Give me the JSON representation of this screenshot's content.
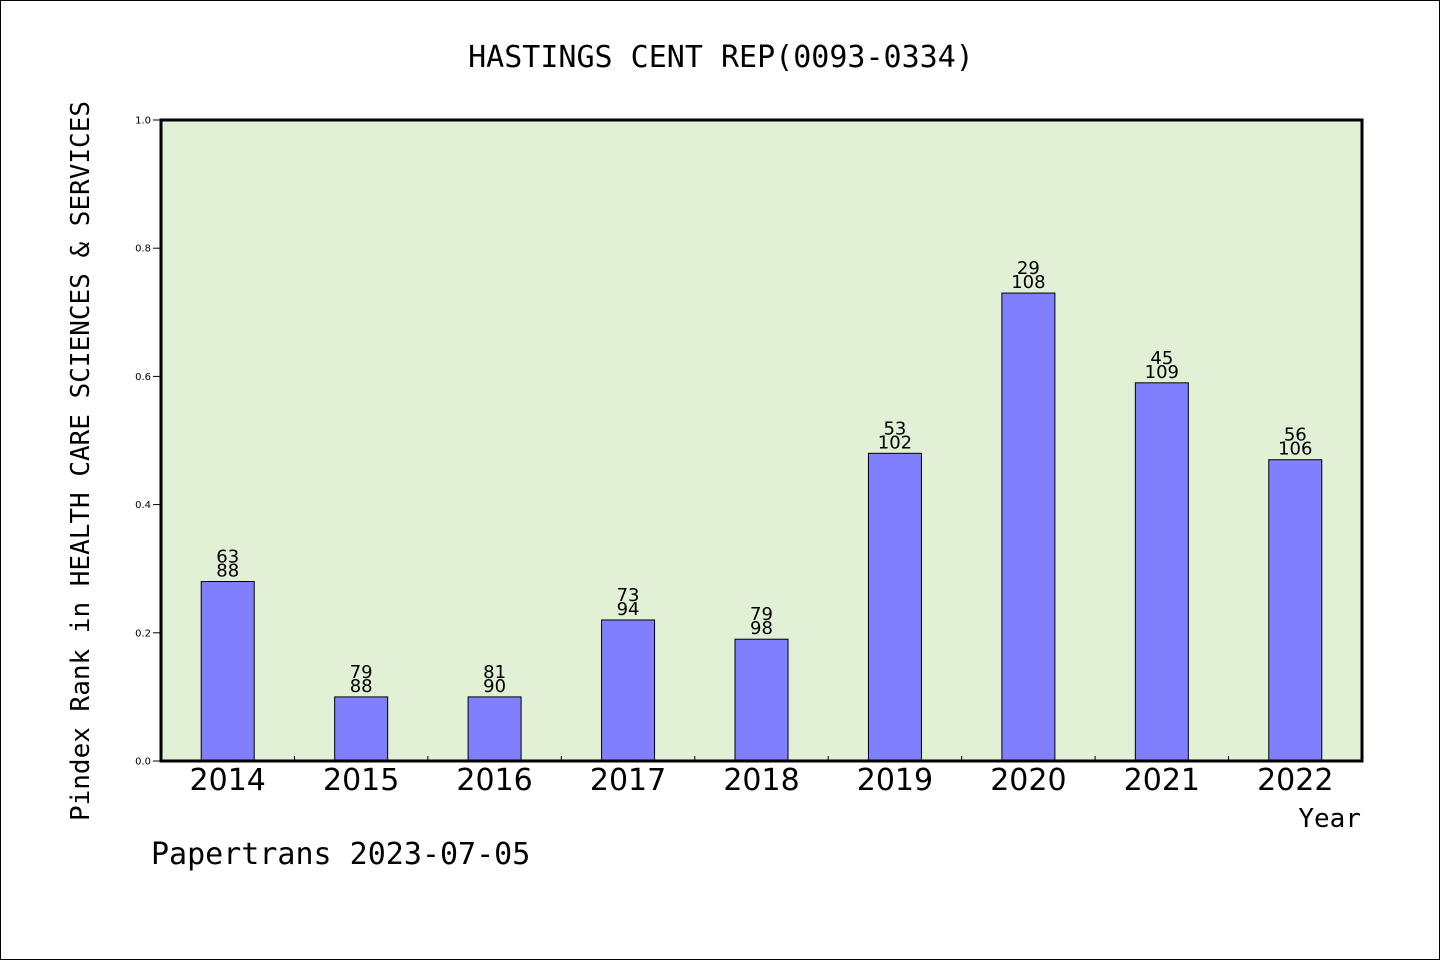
{
  "chart_data": {
    "type": "bar",
    "title": "HASTINGS CENT REP(0093-0334)",
    "xlabel": "Year",
    "ylabel": "Pindex Rank in HEALTH CARE SCIENCES & SERVICES",
    "ylim": [
      0,
      1.0
    ],
    "yticks": [
      "0.0",
      "0.2",
      "0.4",
      "0.6",
      "0.8",
      "1.0"
    ],
    "categories": [
      "2014",
      "2015",
      "2016",
      "2017",
      "2018",
      "2019",
      "2020",
      "2021",
      "2022"
    ],
    "values": [
      0.28,
      0.1,
      0.1,
      0.22,
      0.19,
      0.48,
      0.73,
      0.59,
      0.47
    ],
    "rank_labels": [
      "63",
      "79",
      "81",
      "73",
      "79",
      "53",
      "29",
      "45",
      "56"
    ],
    "total_labels": [
      "88",
      "88",
      "90",
      "94",
      "98",
      "102",
      "108",
      "109",
      "106"
    ],
    "grid": false,
    "legend": "none",
    "colors": {
      "plot_background": "#e2f0d6",
      "bar_fill": "#8080ff",
      "bar_stroke": "#000000"
    }
  },
  "footer": {
    "text": "Papertrans 2023-07-05"
  }
}
